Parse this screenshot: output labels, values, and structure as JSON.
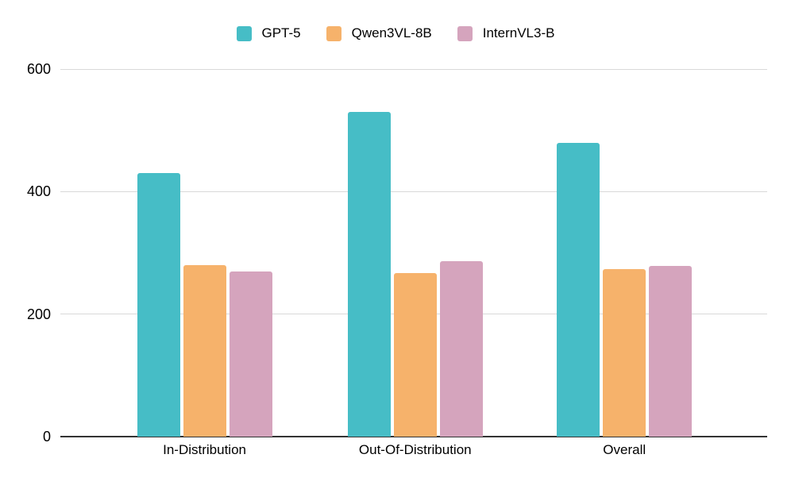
{
  "chart_data": {
    "type": "bar",
    "title": "",
    "xlabel": "",
    "ylabel": "",
    "categories": [
      "In-Distribution",
      "Out-Of-Distribution",
      "Overall"
    ],
    "series": [
      {
        "name": "GPT-5",
        "color": "#46bdc6",
        "values": [
          430,
          530,
          480
        ]
      },
      {
        "name": "Qwen3VL-8B",
        "color": "#f6b26b",
        "values": [
          280,
          267,
          274
        ]
      },
      {
        "name": "InternVL3-B",
        "color": "#d5a4bd",
        "values": [
          270,
          287,
          279
        ]
      }
    ],
    "ylim": [
      0,
      600
    ],
    "yticks": [
      0,
      200,
      400,
      600
    ],
    "grid": "horizontal",
    "legend_position": "top"
  },
  "colors": {
    "background": "#ffffff",
    "gridline": "#d9d9d9",
    "axis_line": "#333333",
    "text": "#000000"
  }
}
